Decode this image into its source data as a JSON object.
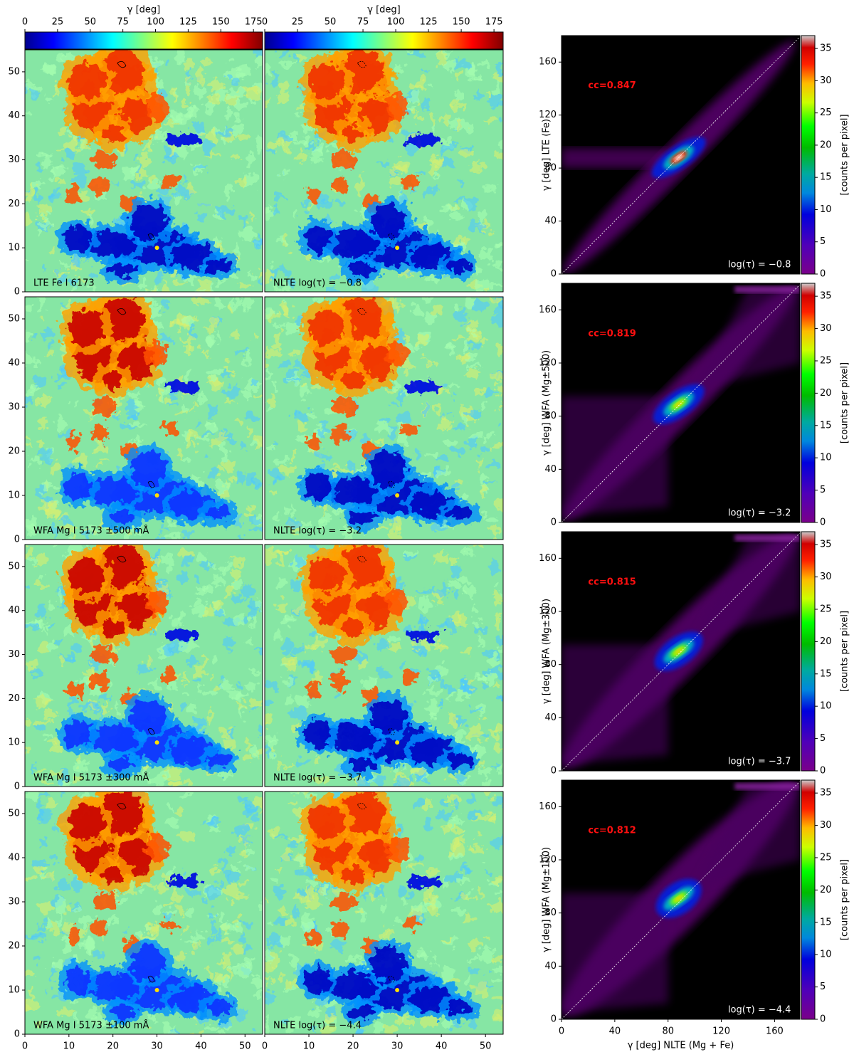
{
  "colorbars": [
    {
      "label": "γ [deg]",
      "lim": [
        0,
        182
      ],
      "ticks": [
        0,
        25,
        50,
        75,
        100,
        125,
        150,
        175
      ]
    },
    {
      "label": "γ [deg]",
      "lim": [
        0,
        182
      ],
      "ticks": [
        0,
        25,
        50,
        75,
        100,
        125,
        150,
        175
      ]
    }
  ],
  "chart_data": [
    {
      "type": "map",
      "label": "LTE Fe I 6173",
      "xlim": [
        0,
        54
      ],
      "ylim": [
        0,
        55
      ],
      "yticks": [
        0,
        10,
        20,
        30,
        40,
        50
      ]
    },
    {
      "type": "map",
      "label": "NLTE log(τ) = −0.8",
      "xlim": [
        0,
        54
      ],
      "ylim": [
        0,
        55
      ]
    },
    {
      "type": "map",
      "label": "WFA Mg I 5173 ±500 mÅ",
      "xlim": [
        0,
        54
      ],
      "ylim": [
        0,
        55
      ],
      "yticks": [
        0,
        10,
        20,
        30,
        40,
        50
      ]
    },
    {
      "type": "map",
      "label": "NLTE log(τ) = −3.2",
      "xlim": [
        0,
        54
      ],
      "ylim": [
        0,
        55
      ]
    },
    {
      "type": "map",
      "label": "WFA Mg I 5173 ±300 mÅ",
      "xlim": [
        0,
        54
      ],
      "ylim": [
        0,
        55
      ],
      "yticks": [
        0,
        10,
        20,
        30,
        40,
        50
      ]
    },
    {
      "type": "map",
      "label": "NLTE log(τ) = −3.7",
      "xlim": [
        0,
        54
      ],
      "ylim": [
        0,
        55
      ]
    },
    {
      "type": "map",
      "label": "WFA Mg I 5173 ±100 mÅ",
      "xlim": [
        0,
        54
      ],
      "ylim": [
        0,
        55
      ],
      "xticks": [
        0,
        10,
        20,
        30,
        40,
        50
      ],
      "yticks": [
        0,
        10,
        20,
        30,
        40,
        50
      ]
    },
    {
      "type": "map",
      "label": "NLTE log(τ) = −4.4",
      "xlim": [
        0,
        54
      ],
      "ylim": [
        0,
        55
      ],
      "xticks": [
        0,
        10,
        20,
        30,
        40,
        50
      ]
    },
    {
      "type": "density",
      "ylabel": "γ [deg] LTE (Fe)",
      "annotation": "cc=0.847",
      "label": "log(τ) = −0.8",
      "xlim": [
        0,
        179
      ],
      "ylim": [
        0,
        180
      ],
      "yticks": [
        0,
        40,
        80,
        120,
        160
      ],
      "colorbar_label": "[counts per pixel]",
      "clim": [
        0,
        37
      ],
      "cticks": [
        0,
        5,
        10,
        15,
        20,
        25,
        30,
        35
      ]
    },
    {
      "type": "density",
      "ylabel": "γ [deg] WFA (Mg±500)",
      "annotation": "cc=0.819",
      "label": "log(τ) = −3.2",
      "xlim": [
        0,
        179
      ],
      "ylim": [
        0,
        180
      ],
      "yticks": [
        0,
        40,
        80,
        120,
        160
      ],
      "colorbar_label": "[counts per pixel]",
      "clim": [
        0,
        37
      ],
      "cticks": [
        0,
        5,
        10,
        15,
        20,
        25,
        30,
        35
      ]
    },
    {
      "type": "density",
      "ylabel": "γ [deg] WFA (Mg±300)",
      "annotation": "cc=0.815",
      "label": "log(τ) = −3.7",
      "xlim": [
        0,
        179
      ],
      "ylim": [
        0,
        180
      ],
      "yticks": [
        0,
        40,
        80,
        120,
        160
      ],
      "colorbar_label": "[counts per pixel]",
      "clim": [
        0,
        37
      ],
      "cticks": [
        0,
        5,
        10,
        15,
        20,
        25,
        30,
        35
      ]
    },
    {
      "type": "density",
      "ylabel": "γ [deg] WFA (Mg±100)",
      "annotation": "cc=0.812",
      "label": "log(τ) = −4.4",
      "xlabel": "γ [deg] NLTE (Mg + Fe)",
      "xlim": [
        0,
        179
      ],
      "ylim": [
        0,
        180
      ],
      "xticks": [
        0,
        40,
        80,
        120,
        160
      ],
      "yticks": [
        0,
        40,
        80,
        120,
        160
      ],
      "colorbar_label": "[counts per pixel]",
      "clim": [
        0,
        37
      ],
      "cticks": [
        0,
        5,
        10,
        15,
        20,
        25,
        30,
        35
      ]
    }
  ]
}
